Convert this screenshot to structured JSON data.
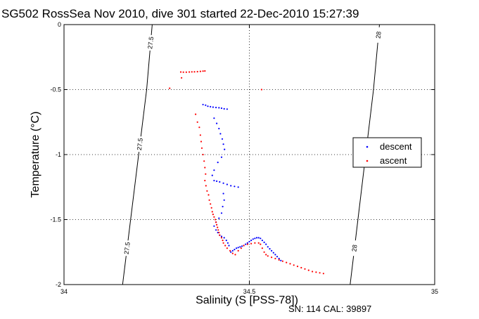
{
  "chart_data": {
    "type": "scatter",
    "title": "SG502 RossSea Nov 2010, dive 301 started 22-Dec-2010 15:27:39",
    "xlabel": "Salinity (S [PSS-78])",
    "ylabel": "Temperature (°C)",
    "footer": "SN: 114  CAL: 39897",
    "xlim": [
      34,
      35
    ],
    "ylim": [
      -2,
      0
    ],
    "x_ticks": [
      34,
      34.5,
      35
    ],
    "x_tick_labels": [
      "34",
      "34.5",
      "35"
    ],
    "y_ticks": [
      -2,
      -1.5,
      -1,
      -0.5,
      0
    ],
    "y_tick_labels": [
      "-2",
      "-1.5",
      "-1",
      "-0.5",
      "0"
    ],
    "grid": true,
    "legend_position": "right",
    "isopycnals": [
      {
        "label": "27.5",
        "points": [
          [
            34.158,
            -2.0
          ],
          [
            34.223,
            -0.5
          ],
          [
            34.238,
            0.0
          ]
        ],
        "labels_at": [
          -1.72,
          -0.92,
          -0.14
        ]
      },
      {
        "label": "28",
        "points": [
          [
            34.772,
            -2.0
          ],
          [
            34.835,
            -0.5
          ],
          [
            34.851,
            0.0
          ]
        ],
        "labels_at": [
          -1.72,
          -0.08
        ]
      }
    ],
    "series": [
      {
        "name": "descent",
        "color": "#0000ff",
        "points": [
          [
            34.375,
            -0.615
          ],
          [
            34.382,
            -0.62
          ],
          [
            34.388,
            -0.628
          ],
          [
            34.395,
            -0.632
          ],
          [
            34.402,
            -0.635
          ],
          [
            34.41,
            -0.638
          ],
          [
            34.418,
            -0.64
          ],
          [
            34.425,
            -0.643
          ],
          [
            34.432,
            -0.648
          ],
          [
            34.44,
            -0.65
          ],
          [
            34.405,
            -0.72
          ],
          [
            34.412,
            -0.76
          ],
          [
            34.418,
            -0.8
          ],
          [
            34.422,
            -0.84
          ],
          [
            34.427,
            -0.88
          ],
          [
            34.43,
            -0.92
          ],
          [
            34.433,
            -0.96
          ],
          [
            34.425,
            -1.02
          ],
          [
            34.415,
            -1.06
          ],
          [
            34.405,
            -1.12
          ],
          [
            34.4,
            -1.16
          ],
          [
            34.405,
            -1.2
          ],
          [
            34.412,
            -1.205
          ],
          [
            34.42,
            -1.21
          ],
          [
            34.43,
            -1.22
          ],
          [
            34.44,
            -1.23
          ],
          [
            34.45,
            -1.24
          ],
          [
            34.46,
            -1.245
          ],
          [
            34.47,
            -1.25
          ],
          [
            34.43,
            -1.3
          ],
          [
            34.432,
            -1.35
          ],
          [
            34.428,
            -1.4
          ],
          [
            34.425,
            -1.45
          ],
          [
            34.418,
            -1.49
          ],
          [
            34.41,
            -1.52
          ],
          [
            34.405,
            -1.55
          ],
          [
            34.41,
            -1.58
          ],
          [
            34.415,
            -1.6
          ],
          [
            34.42,
            -1.62
          ],
          [
            34.425,
            -1.63
          ],
          [
            34.432,
            -1.64
          ],
          [
            34.438,
            -1.66
          ],
          [
            34.442,
            -1.68
          ],
          [
            34.445,
            -1.7
          ],
          [
            34.45,
            -1.75
          ],
          [
            34.455,
            -1.74
          ],
          [
            34.46,
            -1.73
          ],
          [
            34.465,
            -1.72
          ],
          [
            34.47,
            -1.715
          ],
          [
            34.475,
            -1.71
          ],
          [
            34.48,
            -1.705
          ],
          [
            34.485,
            -1.7
          ],
          [
            34.49,
            -1.69
          ],
          [
            34.495,
            -1.68
          ],
          [
            34.5,
            -1.67
          ],
          [
            34.505,
            -1.66
          ],
          [
            34.51,
            -1.65
          ],
          [
            34.515,
            -1.645
          ],
          [
            34.52,
            -1.64
          ],
          [
            34.525,
            -1.64
          ],
          [
            34.53,
            -1.645
          ],
          [
            34.535,
            -1.66
          ],
          [
            34.54,
            -1.675
          ],
          [
            34.545,
            -1.69
          ],
          [
            34.55,
            -1.71
          ],
          [
            34.555,
            -1.725
          ],
          [
            34.56,
            -1.74
          ],
          [
            34.565,
            -1.755
          ],
          [
            34.57,
            -1.77
          ],
          [
            34.575,
            -1.785
          ],
          [
            34.58,
            -1.8
          ],
          [
            34.585,
            -1.815
          ]
        ]
      },
      {
        "name": "ascent",
        "color": "#ff0000",
        "points": [
          [
            34.315,
            -0.365
          ],
          [
            34.322,
            -0.366
          ],
          [
            34.33,
            -0.366
          ],
          [
            34.338,
            -0.365
          ],
          [
            34.345,
            -0.364
          ],
          [
            34.352,
            -0.363
          ],
          [
            34.36,
            -0.362
          ],
          [
            34.368,
            -0.36
          ],
          [
            34.375,
            -0.358
          ],
          [
            34.38,
            -0.357
          ],
          [
            34.317,
            -0.41
          ],
          [
            34.285,
            -0.49
          ],
          [
            34.533,
            -0.5
          ],
          [
            34.355,
            -0.69
          ],
          [
            34.36,
            -0.75
          ],
          [
            34.365,
            -0.79
          ],
          [
            34.368,
            -0.85
          ],
          [
            34.37,
            -0.9
          ],
          [
            34.372,
            -0.95
          ],
          [
            34.375,
            -1.0
          ],
          [
            34.378,
            -1.05
          ],
          [
            34.38,
            -1.1
          ],
          [
            34.382,
            -1.15
          ],
          [
            34.38,
            -1.2
          ],
          [
            34.383,
            -1.24
          ],
          [
            34.386,
            -1.28
          ],
          [
            34.39,
            -1.31
          ],
          [
            34.392,
            -1.35
          ],
          [
            34.395,
            -1.38
          ],
          [
            34.398,
            -1.41
          ],
          [
            34.4,
            -1.44
          ],
          [
            34.402,
            -1.46
          ],
          [
            34.405,
            -1.48
          ],
          [
            34.408,
            -1.5
          ],
          [
            34.41,
            -1.52
          ],
          [
            34.412,
            -1.54
          ],
          [
            34.414,
            -1.56
          ],
          [
            34.416,
            -1.58
          ],
          [
            34.418,
            -1.6
          ],
          [
            34.42,
            -1.62
          ],
          [
            34.425,
            -1.64
          ],
          [
            34.428,
            -1.66
          ],
          [
            34.43,
            -1.68
          ],
          [
            34.435,
            -1.7
          ],
          [
            34.44,
            -1.72
          ],
          [
            34.448,
            -1.74
          ],
          [
            34.455,
            -1.76
          ],
          [
            34.462,
            -1.77
          ],
          [
            34.47,
            -1.74
          ],
          [
            34.478,
            -1.72
          ],
          [
            34.485,
            -1.7
          ],
          [
            34.495,
            -1.69
          ],
          [
            34.505,
            -1.685
          ],
          [
            34.515,
            -1.68
          ],
          [
            34.525,
            -1.68
          ],
          [
            34.53,
            -1.69
          ],
          [
            34.535,
            -1.72
          ],
          [
            34.54,
            -1.75
          ],
          [
            34.545,
            -1.77
          ],
          [
            34.55,
            -1.78
          ],
          [
            34.56,
            -1.79
          ],
          [
            34.57,
            -1.8
          ],
          [
            34.58,
            -1.81
          ],
          [
            34.59,
            -1.82
          ],
          [
            34.6,
            -1.83
          ],
          [
            34.61,
            -1.84
          ],
          [
            34.62,
            -1.85
          ],
          [
            34.63,
            -1.86
          ],
          [
            34.64,
            -1.87
          ],
          [
            34.65,
            -1.88
          ],
          [
            34.66,
            -1.89
          ],
          [
            34.67,
            -1.9
          ],
          [
            34.68,
            -1.905
          ],
          [
            34.69,
            -1.91
          ],
          [
            34.7,
            -1.915
          ]
        ]
      }
    ]
  }
}
